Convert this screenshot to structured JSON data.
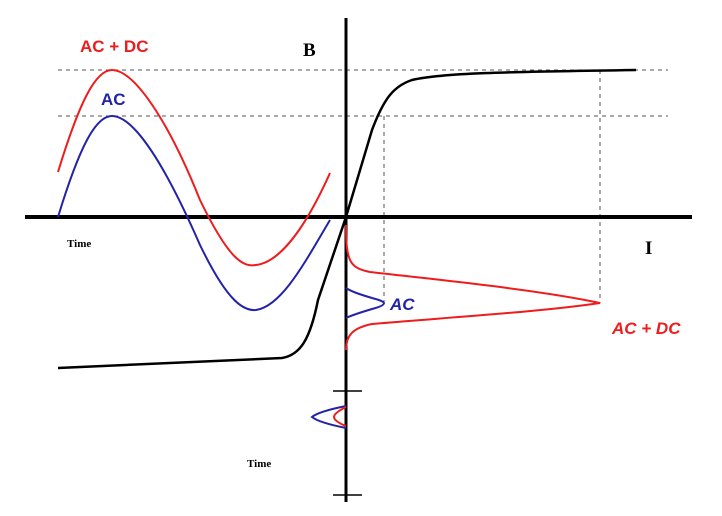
{
  "labels": {
    "b_axis": "B",
    "i_axis": "I",
    "time_left": "Time",
    "time_bottom": "Time",
    "ac_dc_top": "AC + DC",
    "ac_top": "AC",
    "ac_right": "AC",
    "ac_dc_right": "AC + DC"
  },
  "colors": {
    "ac": "#2323a8",
    "ac_dc": "#ee1c1c",
    "curve": "#000000",
    "guides": "#555555"
  }
}
